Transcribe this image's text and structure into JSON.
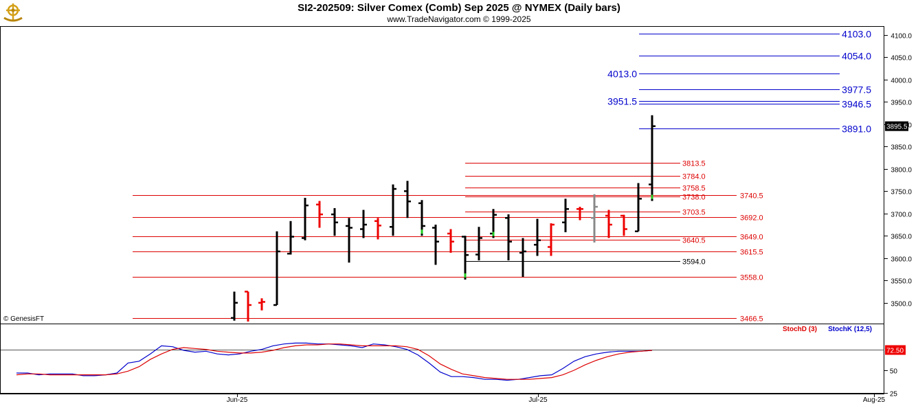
{
  "header": {
    "title": "SI2-202509:  Silver Comex (Comb) Sep 2025 @ NYMEX  (Daily bars)",
    "subtitle": "www.TradeNavigator.com © 1999-2025"
  },
  "watermark": "© GenesisFT",
  "chart_data": [
    {
      "type": "bar",
      "subtype": "ohlc",
      "y_axis_side": "right",
      "ylim": [
        3455,
        4115
      ],
      "yticks": [
        3500,
        3550,
        3600,
        3650,
        3700,
        3750,
        3800,
        3850,
        3900,
        3950,
        4000,
        4050,
        4100
      ],
      "ytick_labels": [
        "3500.0",
        "3550.0",
        "3600.0",
        "3650.0",
        "3700.0",
        "3750.0",
        "3800.0",
        "3850.0",
        "3900.0",
        "3950.0",
        "4000.0",
        "4050.0",
        "4100.0"
      ],
      "last_price": 3895.5,
      "last_price_label": "3895.5",
      "colors": {
        "up": "#000000",
        "down": "#ee0000",
        "neutral": "#888888",
        "close_mark": "#22cc22",
        "resistance": "#0000cc",
        "support": "#dd0000",
        "pivot": "#000000"
      },
      "bars": [
        {
          "o": 3466,
          "h": 3525,
          "l": 3460,
          "c": 3500,
          "color": "black"
        },
        {
          "o": 3525,
          "h": 3525,
          "l": 3458,
          "c": 3495,
          "color": "red"
        },
        {
          "o": 3500,
          "h": 3510,
          "l": 3483,
          "c": 3502,
          "color": "red"
        },
        {
          "o": 3495,
          "h": 3660,
          "l": 3495,
          "c": 3615,
          "color": "black"
        },
        {
          "o": 3610,
          "h": 3683,
          "l": 3608,
          "c": 3648,
          "color": "black"
        },
        {
          "o": 3645,
          "h": 3735,
          "l": 3640,
          "c": 3718,
          "color": "black"
        },
        {
          "o": 3720,
          "h": 3728,
          "l": 3668,
          "c": 3698,
          "color": "red"
        },
        {
          "o": 3698,
          "h": 3712,
          "l": 3650,
          "c": 3680,
          "color": "black"
        },
        {
          "o": 3672,
          "h": 3690,
          "l": 3590,
          "c": 3668,
          "color": "black"
        },
        {
          "o": 3665,
          "h": 3708,
          "l": 3645,
          "c": 3675,
          "color": "black"
        },
        {
          "o": 3683,
          "h": 3690,
          "l": 3642,
          "c": 3673,
          "color": "red"
        },
        {
          "o": 3670,
          "h": 3765,
          "l": 3650,
          "c": 3755,
          "color": "black"
        },
        {
          "o": 3750,
          "h": 3773,
          "l": 3690,
          "c": 3727,
          "color": "black"
        },
        {
          "o": 3723,
          "h": 3730,
          "l": 3650,
          "c": 3672,
          "color": "black",
          "close_mark": true
        },
        {
          "o": 3668,
          "h": 3675,
          "l": 3585,
          "c": 3637,
          "color": "black"
        },
        {
          "o": 3655,
          "h": 3665,
          "l": 3612,
          "c": 3637,
          "color": "red"
        },
        {
          "o": 3648,
          "h": 3650,
          "l": 3552,
          "c": 3607,
          "color": "black",
          "close_mark": true
        },
        {
          "o": 3608,
          "h": 3670,
          "l": 3595,
          "c": 3645,
          "color": "black"
        },
        {
          "o": 3655,
          "h": 3710,
          "l": 3645,
          "c": 3697,
          "color": "black",
          "close_mark": true
        },
        {
          "o": 3690,
          "h": 3698,
          "l": 3595,
          "c": 3637,
          "color": "black"
        },
        {
          "o": 3612,
          "h": 3645,
          "l": 3558,
          "c": 3615,
          "color": "black"
        },
        {
          "o": 3630,
          "h": 3688,
          "l": 3605,
          "c": 3640,
          "color": "black"
        },
        {
          "o": 3625,
          "h": 3678,
          "l": 3605,
          "c": 3675,
          "color": "red"
        },
        {
          "o": 3680,
          "h": 3733,
          "l": 3658,
          "c": 3710,
          "color": "black"
        },
        {
          "o": 3710,
          "h": 3715,
          "l": 3685,
          "c": 3710,
          "color": "red"
        },
        {
          "o": 3690,
          "h": 3743,
          "l": 3635,
          "c": 3715,
          "color": "gray"
        },
        {
          "o": 3695,
          "h": 3708,
          "l": 3645,
          "c": 3675,
          "color": "red"
        },
        {
          "o": 3695,
          "h": 3697,
          "l": 3650,
          "c": 3665,
          "color": "red"
        },
        {
          "o": 3660,
          "h": 3768,
          "l": 3660,
          "c": 3733,
          "color": "black"
        },
        {
          "o": 3765,
          "h": 3920,
          "l": 3728,
          "c": 3895.5,
          "color": "black",
          "close_mark": true
        }
      ],
      "levels": [
        {
          "value": 4103.0,
          "label": "4103.0",
          "type": "resistance"
        },
        {
          "value": 4054.0,
          "label": "4054.0",
          "type": "resistance"
        },
        {
          "value": 4013.0,
          "label": "4013.0",
          "type": "resistance"
        },
        {
          "value": 3977.5,
          "label": "3977.5",
          "type": "resistance"
        },
        {
          "value": 3951.5,
          "label": "3951.5",
          "type": "resistance"
        },
        {
          "value": 3946.5,
          "label": "3946.5",
          "type": "resistance"
        },
        {
          "value": 3891.0,
          "label": "3891.0",
          "type": "resistance"
        },
        {
          "value": 3813.5,
          "label": "3813.5",
          "type": "support"
        },
        {
          "value": 3784.0,
          "label": "3784.0",
          "type": "support"
        },
        {
          "value": 3758.5,
          "label": "3758.5",
          "type": "support"
        },
        {
          "value": 3740.5,
          "label": "3740.5",
          "type": "support"
        },
        {
          "value": 3738.0,
          "label": "3738.0",
          "type": "support"
        },
        {
          "value": 3703.5,
          "label": "3703.5",
          "type": "support"
        },
        {
          "value": 3692.0,
          "label": "3692.0",
          "type": "support"
        },
        {
          "value": 3649.0,
          "label": "3649.0",
          "type": "support"
        },
        {
          "value": 3640.5,
          "label": "3640.5",
          "type": "support"
        },
        {
          "value": 3615.5,
          "label": "3615.5",
          "type": "support"
        },
        {
          "value": 3594.0,
          "label": "3594.0",
          "type": "pivot"
        },
        {
          "value": 3558.0,
          "label": "3558.0",
          "type": "support"
        },
        {
          "value": 3466.5,
          "label": "3466.5",
          "type": "support"
        }
      ],
      "x_labels": [
        {
          "label": "Jun-25"
        },
        {
          "label": "Jul-25"
        },
        {
          "label": "Aug-25"
        }
      ]
    },
    {
      "type": "line",
      "ylim": [
        25,
        100
      ],
      "yticks": [
        25,
        50
      ],
      "ytick_labels": [
        "25",
        "50"
      ],
      "reference_value": 72.5,
      "reference_label": "72.50",
      "legend": [
        "StochD (3)",
        "StochK (12,5)"
      ],
      "series": [
        {
          "name": "StochK (12,5)",
          "color": "#0000cc",
          "values": [
            47,
            47,
            45,
            46,
            46,
            46,
            44,
            44,
            45,
            47,
            58,
            60,
            68,
            77,
            76,
            72,
            70,
            71,
            68,
            67,
            68,
            71,
            73,
            77,
            79,
            80,
            80,
            79,
            79,
            78,
            77,
            75,
            79,
            78,
            76,
            73,
            67,
            58,
            48,
            43,
            43,
            42,
            40,
            40,
            39,
            40,
            42,
            44,
            45,
            52,
            60,
            65,
            68,
            70,
            71,
            71,
            71,
            72
          ]
        },
        {
          "name": "StochD (3)",
          "color": "#dd0000",
          "values": [
            45,
            46,
            46,
            45,
            45,
            45,
            45,
            45,
            45,
            46,
            49,
            54,
            62,
            68,
            73,
            75,
            74,
            73,
            71,
            70,
            69,
            69,
            70,
            72,
            75,
            77,
            78,
            78,
            79,
            79,
            78,
            77,
            77,
            77,
            77,
            76,
            73,
            66,
            57,
            51,
            46,
            44,
            42,
            41,
            40,
            40,
            40,
            41,
            42,
            45,
            50,
            56,
            61,
            65,
            68,
            70,
            71,
            72
          ]
        }
      ]
    }
  ]
}
